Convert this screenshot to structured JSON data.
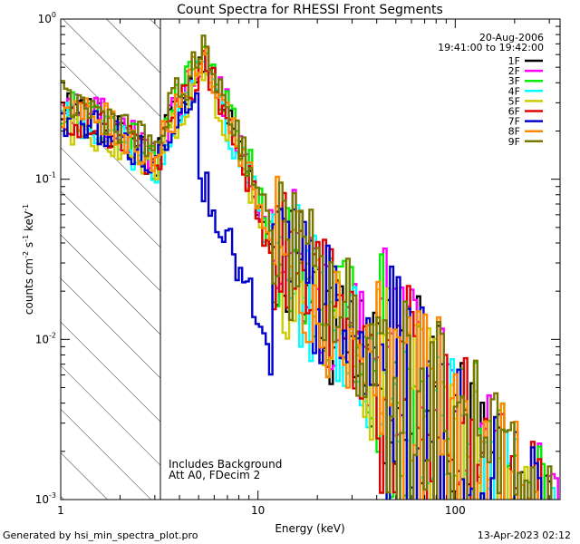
{
  "chart_data": {
    "type": "line",
    "title": "Count Spectra for RHESSI Front Segments",
    "xlabel": "Energy (keV)",
    "ylabel_main": "counts cm",
    "ylabel_e1": "-2",
    "ylabel_mid": " s",
    "ylabel_e2": "-1",
    "ylabel_mid2": " keV",
    "ylabel_e3": "-1",
    "xscale": "log",
    "yscale": "log",
    "xlim": [
      1,
      340
    ],
    "ylim": [
      0.001,
      1
    ],
    "x_ticks": [
      {
        "value": 1,
        "label": "1"
      },
      {
        "value": 10,
        "label": "10"
      },
      {
        "value": 100,
        "label": "100"
      }
    ],
    "y_ticks": [
      {
        "value": 1,
        "base": "10",
        "exp": "0"
      },
      {
        "value": 0.1,
        "base": "10",
        "exp": "-1"
      },
      {
        "value": 0.01,
        "base": "10",
        "exp": "-2"
      },
      {
        "value": 0.001,
        "base": "10",
        "exp": "-3"
      }
    ],
    "date": "20-Aug-2006",
    "time_range": "19:41:00 to 19:42:00",
    "annotation_line1": "Includes Background",
    "annotation_line2": "Att A0, FDecim 2",
    "shaded_region_below_keV": 3,
    "legend_position": "top-right",
    "series": [
      {
        "name": "1F",
        "color": "#000000"
      },
      {
        "name": "2F",
        "color": "#ff00ff"
      },
      {
        "name": "3F",
        "color": "#00ee00"
      },
      {
        "name": "4F",
        "color": "#00ffff"
      },
      {
        "name": "5F",
        "color": "#cccc00"
      },
      {
        "name": "6F",
        "color": "#dd0000"
      },
      {
        "name": "7F",
        "color": "#0000cc"
      },
      {
        "name": "8F",
        "color": "#ff8800"
      },
      {
        "name": "9F",
        "color": "#777700"
      }
    ]
  },
  "footer": {
    "generated_by": "Generated by hsi_min_spectra_plot.pro",
    "timestamp": "13-Apr-2023 02:12"
  }
}
